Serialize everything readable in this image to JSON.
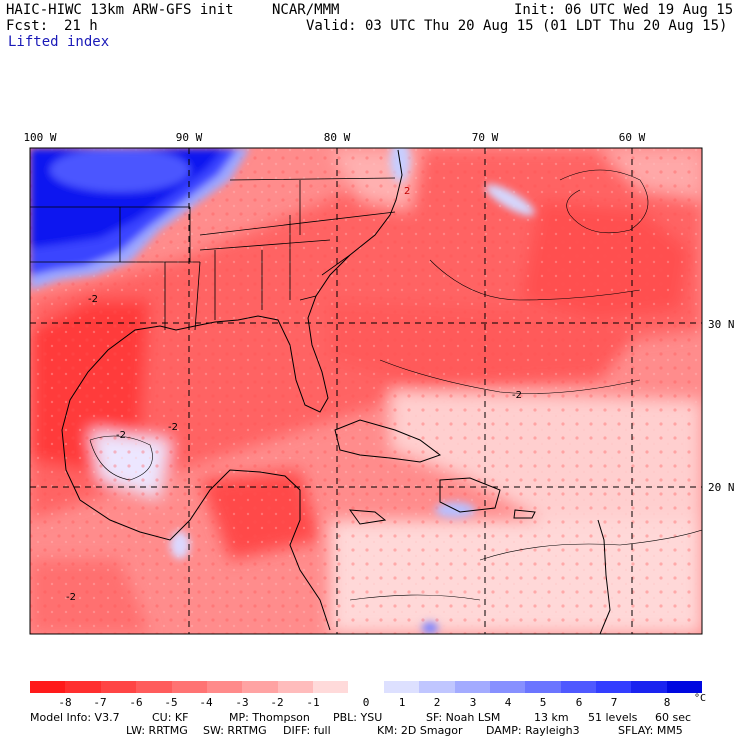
{
  "header": {
    "model_title": "HAIC-HIWC 13km ARW-GFS init",
    "org": "NCAR/MMM",
    "init": "Init: 06 UTC Wed 19 Aug 15",
    "fcst_label": "Fcst:",
    "fcst_value": "21 h",
    "valid": "Valid: 03 UTC Thu 20 Aug 15 (01 LDT Thu 20 Aug 15)",
    "field": "Lifted index"
  },
  "map": {
    "lon_labels": [
      "100 W",
      "90 W",
      "80 W",
      "70 W",
      "60 W"
    ],
    "lat_labels": [
      "30 N",
      "20 N"
    ],
    "contour_labels": [
      "-2",
      "-2",
      "-2",
      "-2",
      "-2",
      "2"
    ]
  },
  "colorbar": {
    "tick_labels": [
      "-8",
      "-7",
      "-6",
      "-5",
      "-4",
      "-3",
      "-2",
      "-1",
      "0",
      "1",
      "2",
      "3",
      "4",
      "5",
      "6",
      "7",
      "8"
    ],
    "unit": "°C",
    "colors": [
      "#ff1a1a",
      "#ff2f2f",
      "#ff4545",
      "#ff5c5c",
      "#ff7373",
      "#ff8a8a",
      "#ffa3a3",
      "#ffbcbc",
      "#ffdada",
      "#ffffff",
      "#dde0ff",
      "#c0c6ff",
      "#a3abff",
      "#8790ff",
      "#6b75ff",
      "#4f59ff",
      "#333eff",
      "#1a23f0",
      "#0008e0"
    ]
  },
  "footer": {
    "line1": [
      "Model Info: V3.7",
      "CU: KF",
      "MP: Thompson",
      "PBL: YSU",
      "SF: Noah LSM",
      "13 km",
      "51 levels",
      "60 sec"
    ],
    "line2": [
      "LW: RRTMG",
      "SW: RRTMG",
      "DIFF: full",
      "KM: 2D Smagor",
      "DAMP: Rayleigh3",
      "SFLAY: MM5"
    ]
  }
}
